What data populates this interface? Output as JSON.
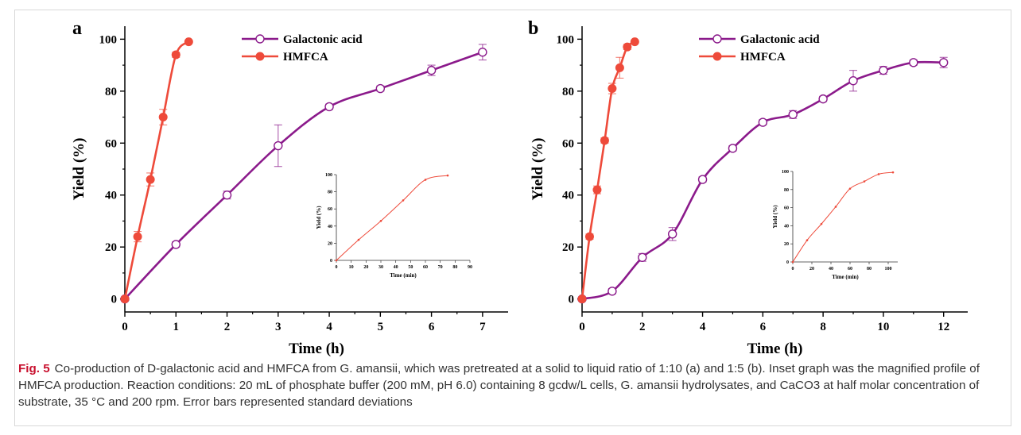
{
  "figure": {
    "caption": {
      "label": "Fig. 5",
      "text": "Co-production of D-galactonic acid and HMFCA from G. amansii, which was pretreated at a solid to liquid ratio of 1:10 (a) and 1:5 (b). Inset graph was the magnified profile of HMFCA production. Reaction conditions: 20 mL of phosphate buffer (200 mM, pH 6.0) containing 8 gcdw/L cells, G. amansii hydrolysates, and CaCO3 at half molar concentration of substrate, 35 °C and 200 rpm. Error bars represented standard deviations"
    }
  },
  "colors": {
    "galactonic": "#8b1a8b",
    "hmfca": "#ee4a3a",
    "axis": "#000000"
  },
  "chart_data": [
    {
      "panel": "a",
      "type": "line",
      "xlabel": "Time (h)",
      "ylabel": "Yield (%)",
      "xlim": [
        0,
        7.5
      ],
      "ylim": [
        -5,
        105
      ],
      "xticks": [
        "0",
        "1",
        "2",
        "3",
        "4",
        "5",
        "6",
        "7"
      ],
      "yticks": [
        "0",
        "20",
        "40",
        "60",
        "80",
        "100"
      ],
      "legend": [
        "Galactonic acid",
        "HMFCA"
      ],
      "legend_position": "top-center",
      "series": [
        {
          "name": "Galactonic acid",
          "marker": "open-circle",
          "x": [
            0,
            1,
            2,
            3,
            4,
            5,
            6,
            7
          ],
          "y": [
            0,
            21,
            40,
            59,
            74,
            81,
            88,
            95
          ],
          "err": [
            0.5,
            1,
            1.5,
            8,
            1,
            1,
            2,
            3
          ]
        },
        {
          "name": "HMFCA",
          "marker": "filled-circle",
          "x": [
            0,
            0.25,
            0.5,
            0.75,
            1.0,
            1.25
          ],
          "y": [
            0,
            24,
            46,
            70,
            94,
            99
          ],
          "err": [
            0.5,
            2,
            2.5,
            3,
            1,
            0.5
          ]
        }
      ],
      "inset": {
        "xlabel": "Time (min)",
        "ylabel": "Yield (%)",
        "xlim": [
          0,
          90
        ],
        "ylim": [
          0,
          100
        ],
        "xticks": [
          "0",
          "10",
          "20",
          "30",
          "40",
          "50",
          "60",
          "70",
          "80",
          "90"
        ],
        "yticks": [
          "0",
          "20",
          "40",
          "60",
          "80",
          "100"
        ],
        "x": [
          0,
          15,
          30,
          45,
          60,
          75
        ],
        "y": [
          0,
          24,
          46,
          70,
          94,
          99
        ]
      }
    },
    {
      "panel": "b",
      "type": "line",
      "xlabel": "Time (h)",
      "ylabel": "Yield (%)",
      "xlim": [
        0,
        12.8
      ],
      "ylim": [
        -5,
        105
      ],
      "xticks": [
        "0",
        "2",
        "4",
        "6",
        "8",
        "10",
        "12"
      ],
      "yticks": [
        "0",
        "20",
        "40",
        "60",
        "80",
        "100"
      ],
      "legend": [
        "Galactonic acid",
        "HMFCA"
      ],
      "legend_position": "top-center",
      "series": [
        {
          "name": "Galactonic acid",
          "marker": "open-circle",
          "x": [
            0,
            1,
            2,
            3,
            4,
            5,
            6,
            7,
            8,
            9,
            10,
            11,
            12
          ],
          "y": [
            0,
            3,
            16,
            25,
            46,
            58,
            68,
            71,
            77,
            84,
            88,
            91,
            91
          ],
          "err": [
            0.5,
            1,
            1.5,
            2.5,
            1,
            1,
            1,
            1.5,
            1,
            4,
            1.5,
            1,
            2
          ]
        },
        {
          "name": "HMFCA",
          "marker": "filled-circle",
          "x": [
            0,
            0.25,
            0.5,
            0.75,
            1.0,
            1.25,
            1.5,
            1.75
          ],
          "y": [
            0,
            24,
            42,
            61,
            81,
            89,
            97,
            99
          ],
          "err": [
            0.5,
            1,
            1.5,
            1,
            2,
            4,
            1,
            0.5
          ]
        }
      ],
      "inset": {
        "xlabel": "Time (min)",
        "ylabel": "Yield (%)",
        "xlim": [
          0,
          110
        ],
        "ylim": [
          0,
          100
        ],
        "xticks": [
          "0",
          "20",
          "40",
          "60",
          "80",
          "100"
        ],
        "yticks": [
          "0",
          "20",
          "40",
          "60",
          "80",
          "100"
        ],
        "x": [
          0,
          15,
          30,
          45,
          60,
          75,
          90,
          105
        ],
        "y": [
          0,
          24,
          42,
          61,
          81,
          89,
          97,
          99
        ]
      }
    }
  ]
}
